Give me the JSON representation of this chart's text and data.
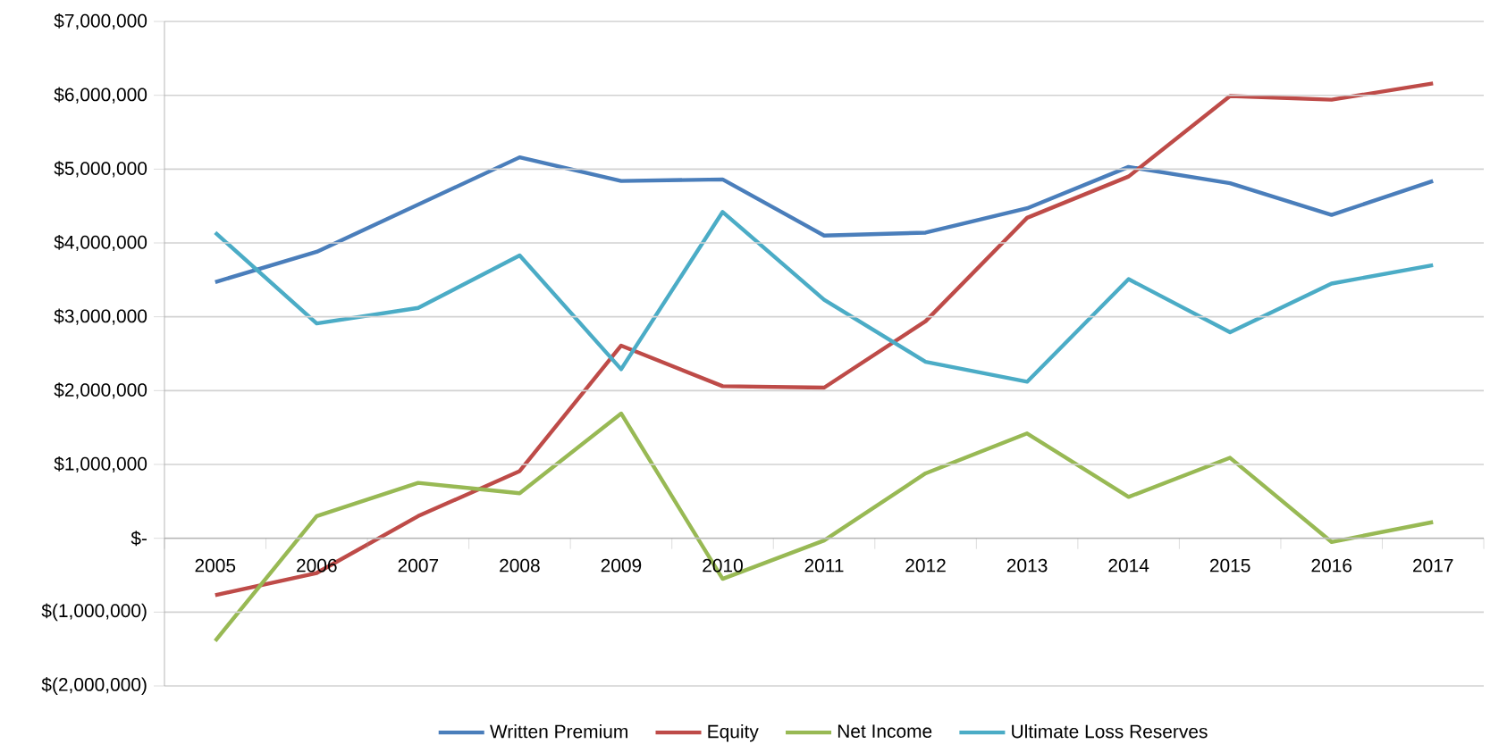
{
  "chart_data": {
    "type": "line",
    "categories": [
      "2005",
      "2006",
      "2007",
      "2008",
      "2009",
      "2010",
      "2011",
      "2012",
      "2013",
      "2014",
      "2015",
      "2016",
      "2017"
    ],
    "series": [
      {
        "name": "Written Premium",
        "color": "#4a7ebb",
        "values": [
          3470000,
          3880000,
          4520000,
          5160000,
          4840000,
          4860000,
          4100000,
          4140000,
          4470000,
          5030000,
          4810000,
          4380000,
          4840000
        ]
      },
      {
        "name": "Equity",
        "color": "#be4b48",
        "values": [
          -770000,
          -470000,
          300000,
          910000,
          2610000,
          2060000,
          2040000,
          2940000,
          4340000,
          4900000,
          5990000,
          5940000,
          6160000
        ]
      },
      {
        "name": "Net Income",
        "color": "#98b954",
        "values": [
          -1390000,
          300000,
          750000,
          610000,
          1690000,
          -550000,
          -30000,
          880000,
          1420000,
          560000,
          1090000,
          -50000,
          220000
        ]
      },
      {
        "name": "Ultimate Loss Reserves",
        "color": "#4bacc6",
        "values": [
          4140000,
          2910000,
          3120000,
          3830000,
          2290000,
          4420000,
          3230000,
          2390000,
          2120000,
          3510000,
          2790000,
          3450000,
          3700000
        ]
      }
    ],
    "ylim": [
      -2000000,
      7000000
    ],
    "yticks": [
      {
        "value": -2000000,
        "label": "$(2,000,000)"
      },
      {
        "value": -1000000,
        "label": "$(1,000,000)"
      },
      {
        "value": 0,
        "label": "$-"
      },
      {
        "value": 1000000,
        "label": "$1,000,000"
      },
      {
        "value": 2000000,
        "label": "$2,000,000"
      },
      {
        "value": 3000000,
        "label": "$3,000,000"
      },
      {
        "value": 4000000,
        "label": "$4,000,000"
      },
      {
        "value": 5000000,
        "label": "$5,000,000"
      },
      {
        "value": 6000000,
        "label": "$6,000,000"
      },
      {
        "value": 7000000,
        "label": "$7,000,000"
      }
    ],
    "grid": "y",
    "legend": "bottom",
    "marker": "none",
    "line_style": "solid"
  }
}
